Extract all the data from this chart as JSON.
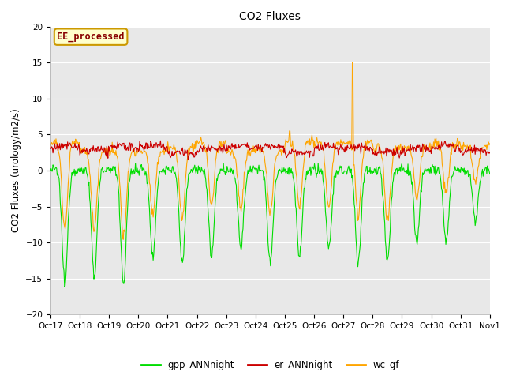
{
  "title": "CO2 Fluxes",
  "ylabel": "CO2 Fluxes (urology/m2/s)",
  "ylim": [
    -20,
    20
  ],
  "background_color": "#e8e8e8",
  "figure_bg": "#ffffff",
  "legend_entries": [
    "gpp_ANNnight",
    "er_ANNnight",
    "wc_gf"
  ],
  "legend_colors": [
    "#00dd00",
    "#cc0000",
    "#ffa500"
  ],
  "annotation_text": "EE_processed",
  "annotation_color": "#880000",
  "annotation_bg": "#ffffcc",
  "annotation_border": "#cc9900",
  "xtick_labels": [
    "Oct 17",
    "Oct 18",
    "Oct 19",
    "Oct 20",
    "Oct 21",
    "Oct 22",
    "Oct 23",
    "Oct 24",
    "Oct 25",
    "Oct 26",
    "Oct 27",
    "Oct 28",
    "Oct 29",
    "Oct 30",
    "Oct 31",
    "Nov 1"
  ],
  "line_width": 0.8,
  "n_points_per_day": 48,
  "n_days": 15,
  "yticks": [
    -20,
    -15,
    -10,
    -5,
    0,
    5,
    10,
    15,
    20
  ],
  "grid_color": "#ffffff",
  "tick_fontsize": 7.5,
  "title_fontsize": 10,
  "ylabel_fontsize": 8.5,
  "legend_fontsize": 8.5
}
